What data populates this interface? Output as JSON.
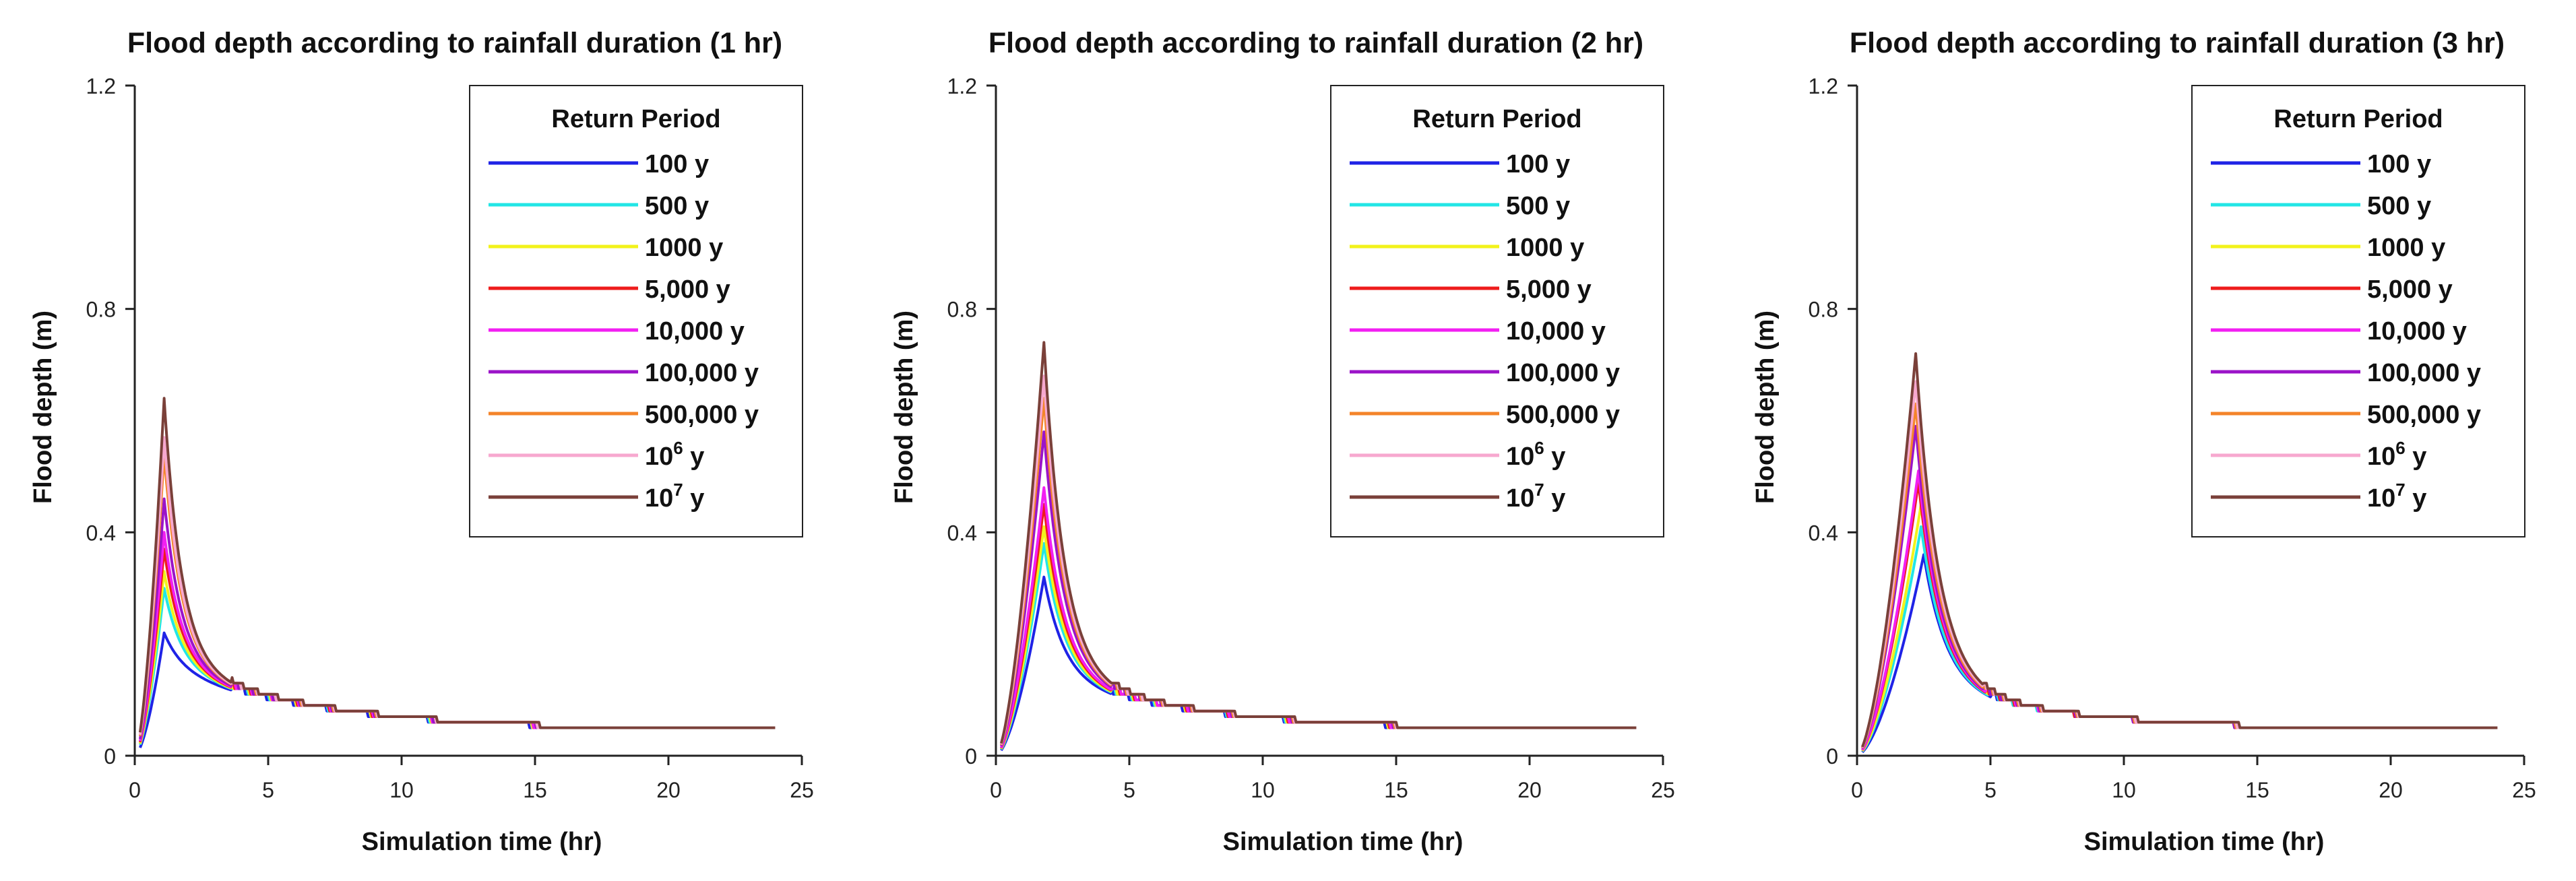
{
  "colors": {
    "100 y": "#1f23e6",
    "500 y": "#22e6e6",
    "1000 y": "#f2f21a",
    "5,000 y": "#ee1c1c",
    "10,000 y": "#f21ff2",
    "100,000 y": "#9b14c8",
    "500,000 y": "#f4842a",
    "10^6 y": "#f7a8cf",
    "10^7 y": "#7a4039"
  },
  "legend": {
    "title": "Return Period",
    "labels": [
      "100 y",
      "500 y",
      "1000 y",
      "5,000 y",
      "10,000 y",
      "100,000 y",
      "500,000 y",
      "10",
      "10"
    ],
    "superscripts": [
      "",
      "",
      "",
      "",
      "",
      "",
      "",
      "6",
      "7"
    ],
    "label_suffix": [
      "",
      "",
      "",
      "",
      "",
      "",
      "",
      " y",
      " y"
    ]
  },
  "chart_data": [
    {
      "type": "line",
      "title": "Flood depth according to rainfall duration (1 hr)",
      "xlabel": "Simulation time (hr)",
      "ylabel": "Flood depth (m)",
      "xlim": [
        0,
        25
      ],
      "ylim": [
        0,
        1.2
      ],
      "xticks": [
        0,
        5,
        10,
        15,
        20,
        25
      ],
      "yticks": [
        0,
        0.4,
        0.8,
        1.2
      ],
      "legend_position": "top-right",
      "rain_duration": 1,
      "tail_depth": 0.04,
      "series": [
        {
          "name": "100 y",
          "peak_time": 1.1,
          "peak_depth": 0.22
        },
        {
          "name": "500 y",
          "peak_time": 1.1,
          "peak_depth": 0.3
        },
        {
          "name": "1000 y",
          "peak_time": 1.1,
          "peak_depth": 0.33
        },
        {
          "name": "5,000 y",
          "peak_time": 1.1,
          "peak_depth": 0.37
        },
        {
          "name": "10,000 y",
          "peak_time": 1.1,
          "peak_depth": 0.4
        },
        {
          "name": "100,000 y",
          "peak_time": 1.1,
          "peak_depth": 0.46
        },
        {
          "name": "500,000 y",
          "peak_time": 1.1,
          "peak_depth": 0.54
        },
        {
          "name": "10^6 y",
          "peak_time": 1.1,
          "peak_depth": 0.57
        },
        {
          "name": "10^7 y",
          "peak_time": 1.1,
          "peak_depth": 0.64
        }
      ]
    },
    {
      "type": "line",
      "title": "Flood depth according to rainfall duration (2 hr)",
      "xlabel": "Simulation time (hr)",
      "ylabel": "Flood depth (m)",
      "xlim": [
        0,
        25
      ],
      "ylim": [
        0,
        1.2
      ],
      "xticks": [
        0,
        5,
        10,
        15,
        20,
        25
      ],
      "yticks": [
        0,
        0.4,
        0.8,
        1.2
      ],
      "legend_position": "top-right",
      "rain_duration": 2,
      "tail_depth": 0.04,
      "series": [
        {
          "name": "100 y",
          "peak_time": 1.8,
          "peak_depth": 0.32
        },
        {
          "name": "500 y",
          "peak_time": 1.8,
          "peak_depth": 0.38
        },
        {
          "name": "1000 y",
          "peak_time": 1.8,
          "peak_depth": 0.41
        },
        {
          "name": "5,000 y",
          "peak_time": 1.8,
          "peak_depth": 0.45
        },
        {
          "name": "10,000 y",
          "peak_time": 1.8,
          "peak_depth": 0.48
        },
        {
          "name": "100,000 y",
          "peak_time": 1.8,
          "peak_depth": 0.58
        },
        {
          "name": "500,000 y",
          "peak_time": 1.8,
          "peak_depth": 0.64
        },
        {
          "name": "10^6 y",
          "peak_time": 1.8,
          "peak_depth": 0.68
        },
        {
          "name": "10^7 y",
          "peak_time": 1.8,
          "peak_depth": 0.74
        }
      ]
    },
    {
      "type": "line",
      "title": "Flood depth according to rainfall duration (3 hr)",
      "xlabel": "Simulation time (hr)",
      "ylabel": "Flood depth (m)",
      "xlim": [
        0,
        25
      ],
      "ylim": [
        0,
        1.2
      ],
      "xticks": [
        0,
        5,
        10,
        15,
        20,
        25
      ],
      "yticks": [
        0,
        0.4,
        0.8,
        1.2
      ],
      "legend_position": "top-right",
      "rain_duration": 3,
      "tail_depth": 0.04,
      "series": [
        {
          "name": "100 y",
          "peak_time": 2.5,
          "peak_depth": 0.36
        },
        {
          "name": "500 y",
          "peak_time": 2.4,
          "peak_depth": 0.41
        },
        {
          "name": "1000 y",
          "peak_time": 2.4,
          "peak_depth": 0.45
        },
        {
          "name": "5,000 y",
          "peak_time": 2.3,
          "peak_depth": 0.49
        },
        {
          "name": "10,000 y",
          "peak_time": 2.3,
          "peak_depth": 0.51
        },
        {
          "name": "100,000 y",
          "peak_time": 2.2,
          "peak_depth": 0.59
        },
        {
          "name": "500,000 y",
          "peak_time": 2.2,
          "peak_depth": 0.63
        },
        {
          "name": "10^6 y",
          "peak_time": 2.2,
          "peak_depth": 0.67
        },
        {
          "name": "10^7 y",
          "peak_time": 2.2,
          "peak_depth": 0.72
        }
      ]
    }
  ]
}
